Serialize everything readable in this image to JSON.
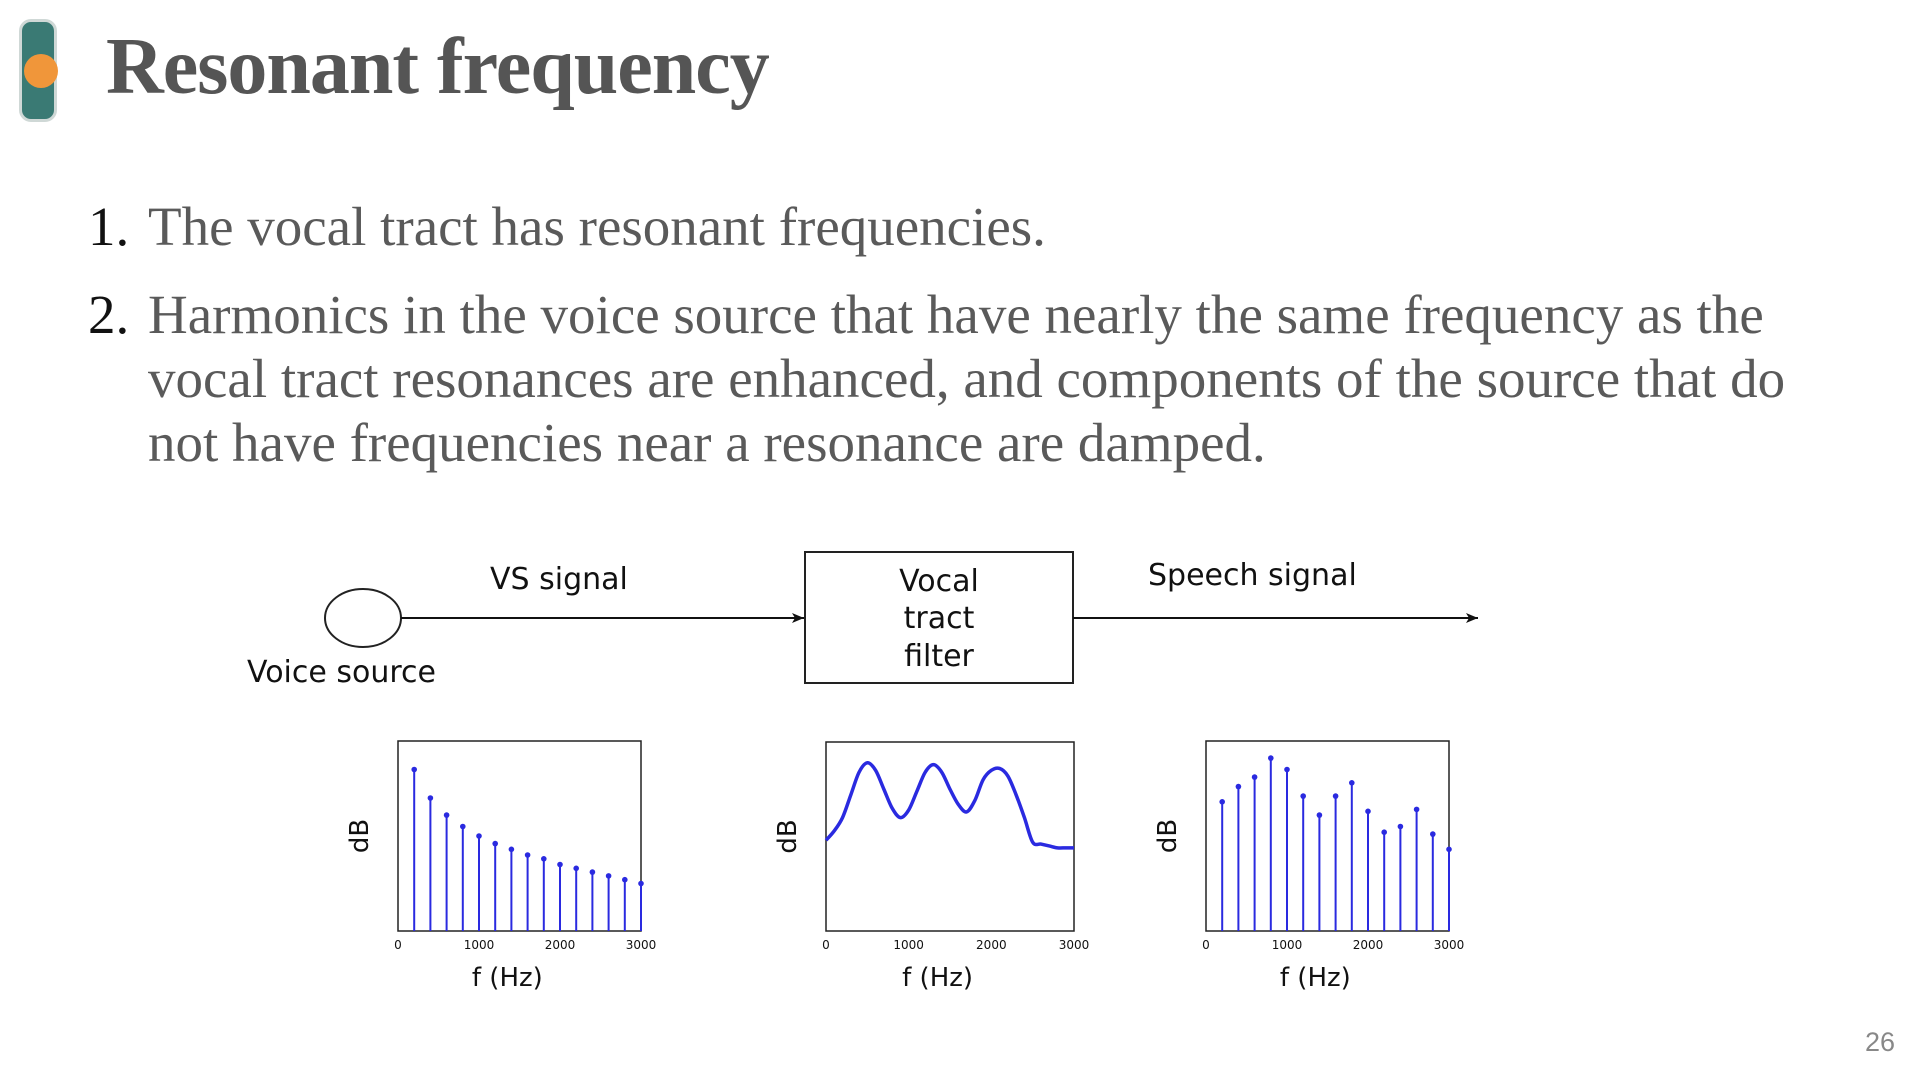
{
  "slide": {
    "title": "Resonant frequency",
    "page_number": "26"
  },
  "points": [
    {
      "number": "1.",
      "text": "The vocal tract has resonant frequencies."
    },
    {
      "number": "2.",
      "text": "Harmonics in the voice source that have nearly the same frequency as the vocal tract resonances are enhanced, and components of the source that do not have frequencies near a resonance are damped."
    }
  ],
  "diagram": {
    "source_label": "Voice source",
    "vs_signal_label": "VS signal",
    "filter_label": [
      "Vocal",
      "tract",
      "filter"
    ],
    "speech_signal_label": "Speech signal"
  },
  "chart_data": [
    {
      "type": "stem",
      "ylabel": "dB",
      "xlabel": "f (Hz)",
      "xlim": [
        0,
        3000
      ],
      "xticks": [
        "0",
        "1000",
        "2000",
        "3000"
      ],
      "ylim": [
        0,
        1
      ],
      "x": [
        200,
        400,
        600,
        800,
        1000,
        1200,
        1400,
        1600,
        1800,
        2000,
        2200,
        2400,
        2600,
        2800,
        3000
      ],
      "values": [
        0.85,
        0.7,
        0.61,
        0.55,
        0.5,
        0.46,
        0.43,
        0.4,
        0.38,
        0.35,
        0.33,
        0.31,
        0.29,
        0.27,
        0.25
      ],
      "color": "#2a2ae0"
    },
    {
      "type": "line",
      "ylabel": "dB",
      "xlabel": "f (Hz)",
      "xlim": [
        0,
        3000
      ],
      "xticks": [
        "0",
        "1000",
        "2000",
        "3000"
      ],
      "ylim": [
        0,
        1
      ],
      "x": [
        0,
        100,
        200,
        300,
        400,
        500,
        600,
        700,
        800,
        900,
        1000,
        1100,
        1200,
        1300,
        1400,
        1500,
        1600,
        1700,
        1800,
        1900,
        2000,
        2100,
        2200,
        2300,
        2400,
        2500,
        2600,
        2700,
        2800,
        2900,
        3000
      ],
      "values": [
        0.48,
        0.53,
        0.6,
        0.72,
        0.84,
        0.89,
        0.85,
        0.75,
        0.65,
        0.6,
        0.64,
        0.74,
        0.84,
        0.88,
        0.84,
        0.75,
        0.67,
        0.63,
        0.69,
        0.8,
        0.85,
        0.86,
        0.82,
        0.72,
        0.6,
        0.47,
        0.46,
        0.45,
        0.44,
        0.44,
        0.44
      ],
      "color": "#2a2ae0"
    },
    {
      "type": "stem",
      "ylabel": "dB",
      "xlabel": "f (Hz)",
      "xlim": [
        0,
        3000
      ],
      "xticks": [
        "0",
        "1000",
        "2000",
        "3000"
      ],
      "ylim": [
        0,
        1
      ],
      "x": [
        200,
        400,
        600,
        800,
        1000,
        1200,
        1400,
        1600,
        1800,
        2000,
        2200,
        2400,
        2600,
        2800,
        3000
      ],
      "values": [
        0.68,
        0.76,
        0.81,
        0.91,
        0.85,
        0.71,
        0.61,
        0.71,
        0.78,
        0.63,
        0.52,
        0.55,
        0.64,
        0.51,
        0.43
      ],
      "color": "#2a2ae0"
    }
  ]
}
